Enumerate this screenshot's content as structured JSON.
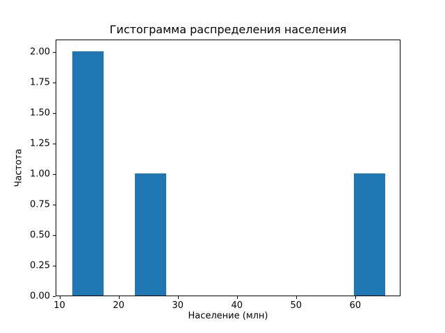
{
  "chart_data": {
    "type": "bar",
    "subtype": "histogram",
    "title": "Гистограмма распределения населения",
    "xlabel": "Население (млн)",
    "ylabel": "Частота",
    "bin_edges": [
      12.0,
      17.3,
      22.6,
      27.9,
      33.2,
      38.5,
      43.8,
      49.1,
      54.4,
      59.7,
      65.0
    ],
    "counts": [
      2,
      0,
      1,
      0,
      0,
      0,
      0,
      0,
      0,
      1
    ],
    "xlim": [
      9.35,
      67.65
    ],
    "ylim": [
      0,
      2.1
    ],
    "xticks": [
      10,
      20,
      30,
      40,
      50,
      60
    ],
    "xtick_labels": [
      "10",
      "20",
      "30",
      "40",
      "50",
      "60"
    ],
    "yticks": [
      0.0,
      0.25,
      0.5,
      0.75,
      1.0,
      1.25,
      1.5,
      1.75,
      2.0
    ],
    "ytick_labels": [
      "0.00",
      "0.25",
      "0.50",
      "0.75",
      "1.00",
      "1.25",
      "1.50",
      "1.75",
      "2.00"
    ],
    "bar_color": "#1f77b4",
    "grid": false,
    "legend": null
  }
}
